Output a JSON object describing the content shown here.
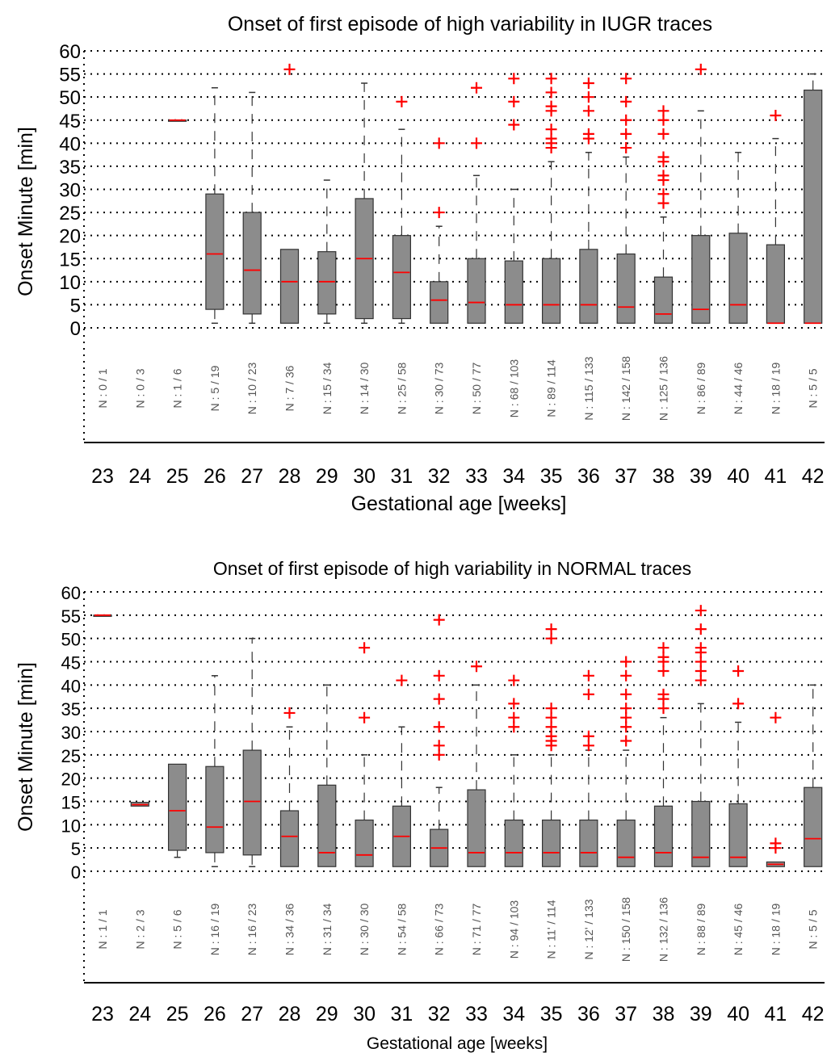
{
  "chart_data": [
    {
      "type": "box",
      "title": "Onset of first episode of high variability in IUGR traces",
      "xlabel": "Gestational age [weeks]",
      "ylabel": "Onset Minute [min]",
      "ylim": [
        0,
        60
      ],
      "yticks": [
        "0",
        "5",
        "10",
        "15",
        "20",
        "25",
        "30",
        "35",
        "40",
        "45",
        "50",
        "55",
        "60"
      ],
      "grid": "dotted",
      "categories": [
        "23",
        "24",
        "25",
        "26",
        "27",
        "28",
        "29",
        "30",
        "31",
        "32",
        "33",
        "34",
        "35",
        "36",
        "37",
        "38",
        "39",
        "40",
        "41",
        "42"
      ],
      "n_labels": [
        "N : 0 / 1",
        "N : 0 / 3",
        "N : 1 / 6",
        "N : 5 / 19",
        "N : 10 / 23",
        "N : 7 / 36",
        "N : 15 / 34",
        "N : 14 / 30",
        "N : 25 / 58",
        "N : 30 / 73",
        "N : 50 / 77",
        "N : 68 / 103",
        "N : 89 / 114",
        "N : 115 / 133",
        "N : 142 / 158",
        "N : 125 / 136",
        "N : 86 / 89",
        "N : 44 / 46",
        "N : 18 / 19",
        "N : 5 / 5"
      ],
      "boxes": [
        null,
        null,
        {
          "q1": 45,
          "median": 45,
          "q3": 45,
          "whisker_low": 45,
          "whisker_high": 45,
          "outliers": []
        },
        {
          "q1": 4,
          "median": 16,
          "q3": 29,
          "whisker_low": 1,
          "whisker_high": 52,
          "outliers": []
        },
        {
          "q1": 3,
          "median": 12.5,
          "q3": 25,
          "whisker_low": 1,
          "whisker_high": 51,
          "outliers": []
        },
        {
          "q1": 1,
          "median": 10,
          "q3": 17,
          "whisker_low": 1,
          "whisker_high": 17,
          "outliers": [
            56
          ]
        },
        {
          "q1": 3,
          "median": 10,
          "q3": 16.5,
          "whisker_low": 1,
          "whisker_high": 32,
          "outliers": []
        },
        {
          "q1": 2,
          "median": 15,
          "q3": 28,
          "whisker_low": 1,
          "whisker_high": 53,
          "outliers": []
        },
        {
          "q1": 2,
          "median": 12,
          "q3": 20,
          "whisker_low": 1,
          "whisker_high": 43,
          "outliers": [
            49
          ]
        },
        {
          "q1": 1,
          "median": 6,
          "q3": 10,
          "whisker_low": 1,
          "whisker_high": 22,
          "outliers": [
            25,
            40
          ]
        },
        {
          "q1": 1,
          "median": 5.5,
          "q3": 15,
          "whisker_low": 1,
          "whisker_high": 33,
          "outliers": [
            40,
            52
          ]
        },
        {
          "q1": 1,
          "median": 5,
          "q3": 14.5,
          "whisker_low": 1,
          "whisker_high": 30,
          "outliers": [
            44,
            49,
            54
          ]
        },
        {
          "q1": 1,
          "median": 5,
          "q3": 15,
          "whisker_low": 1,
          "whisker_high": 36,
          "outliers": [
            39,
            40,
            41,
            43,
            47,
            48,
            51,
            54
          ]
        },
        {
          "q1": 1,
          "median": 5,
          "q3": 17,
          "whisker_low": 1,
          "whisker_high": 38,
          "outliers": [
            41,
            42,
            47,
            50,
            53
          ]
        },
        {
          "q1": 1,
          "median": 4.5,
          "q3": 16,
          "whisker_low": 1,
          "whisker_high": 37,
          "outliers": [
            39,
            42,
            45,
            49,
            54
          ]
        },
        {
          "q1": 1,
          "median": 3,
          "q3": 11,
          "whisker_low": 1,
          "whisker_high": 24,
          "outliers": [
            27,
            29,
            32,
            33,
            36,
            37,
            42,
            45,
            47
          ]
        },
        {
          "q1": 1,
          "median": 4,
          "q3": 20,
          "whisker_low": 1,
          "whisker_high": 47,
          "outliers": [
            56
          ]
        },
        {
          "q1": 1,
          "median": 5,
          "q3": 20.5,
          "whisker_low": 1,
          "whisker_high": 38,
          "outliers": []
        },
        {
          "q1": 1,
          "median": 1,
          "q3": 18,
          "whisker_low": 1,
          "whisker_high": 41,
          "outliers": [
            46
          ]
        },
        {
          "q1": 1,
          "median": 1,
          "q3": 51.5,
          "whisker_low": 1,
          "whisker_high": 55,
          "outliers": []
        }
      ]
    },
    {
      "type": "box",
      "title": "Onset of first episode of high variability in NORMAL traces",
      "xlabel": "Gestational age [weeks]",
      "ylabel": "Onset Minute [min]",
      "ylim": [
        0,
        60
      ],
      "yticks": [
        "0",
        "5",
        "10",
        "15",
        "20",
        "25",
        "30",
        "35",
        "40",
        "45",
        "50",
        "55",
        "60"
      ],
      "grid": "dotted",
      "categories": [
        "23",
        "24",
        "25",
        "26",
        "27",
        "28",
        "29",
        "30",
        "31",
        "32",
        "33",
        "34",
        "35",
        "36",
        "37",
        "38",
        "39",
        "40",
        "41",
        "42"
      ],
      "n_labels": [
        "N : 1 / 1",
        "N : 2 / 3",
        "N : 5 / 6",
        "N : 16 / 19",
        "N : 16 / 23",
        "N : 34 / 36",
        "N : 31 / 34",
        "N : 30 / 30",
        "N : 54 / 58",
        "N : 66 / 73",
        "N : 71 / 77",
        "N : 94 / 103",
        "N : 11' / 114",
        "N : 12' / 133",
        "N : 150 / 158",
        "N : 132 / 136",
        "N : 88 / 89",
        "N : 45 / 46",
        "N : 18 / 19",
        "N : 5 / 5"
      ],
      "boxes": [
        {
          "q1": 55,
          "median": 55,
          "q3": 55,
          "whisker_low": 55,
          "whisker_high": 55,
          "outliers": []
        },
        {
          "q1": 14,
          "median": 14.3,
          "q3": 14.8,
          "whisker_low": 14,
          "whisker_high": 14.8,
          "outliers": []
        },
        {
          "q1": 4.5,
          "median": 13,
          "q3": 23,
          "whisker_low": 3,
          "whisker_high": 23,
          "outliers": []
        },
        {
          "q1": 4,
          "median": 9.5,
          "q3": 22.5,
          "whisker_low": 1,
          "whisker_high": 42,
          "outliers": []
        },
        {
          "q1": 3.5,
          "median": 15,
          "q3": 26,
          "whisker_low": 1,
          "whisker_high": 50,
          "outliers": []
        },
        {
          "q1": 1,
          "median": 7.5,
          "q3": 13,
          "whisker_low": 1,
          "whisker_high": 31,
          "outliers": [
            34
          ]
        },
        {
          "q1": 1,
          "median": 4,
          "q3": 18.5,
          "whisker_low": 1,
          "whisker_high": 40,
          "outliers": []
        },
        {
          "q1": 1,
          "median": 3.5,
          "q3": 11,
          "whisker_low": 1,
          "whisker_high": 25,
          "outliers": [
            33,
            48
          ]
        },
        {
          "q1": 1,
          "median": 7.5,
          "q3": 14,
          "whisker_low": 1,
          "whisker_high": 31,
          "outliers": [
            41
          ]
        },
        {
          "q1": 1,
          "median": 5,
          "q3": 9,
          "whisker_low": 1,
          "whisker_high": 18,
          "outliers": [
            25,
            27,
            31,
            37,
            42,
            54
          ]
        },
        {
          "q1": 1,
          "median": 4,
          "q3": 17.5,
          "whisker_low": 1,
          "whisker_high": 40,
          "outliers": [
            44
          ]
        },
        {
          "q1": 1,
          "median": 4,
          "q3": 11,
          "whisker_low": 1,
          "whisker_high": 25,
          "outliers": [
            31,
            33,
            36,
            41
          ]
        },
        {
          "q1": 1,
          "median": 4,
          "q3": 11,
          "whisker_low": 1,
          "whisker_high": 25,
          "outliers": [
            27,
            28,
            29,
            31,
            33,
            35,
            50,
            52
          ]
        },
        {
          "q1": 1,
          "median": 4,
          "q3": 11,
          "whisker_low": 1,
          "whisker_high": 26,
          "outliers": [
            27,
            29,
            38,
            42
          ]
        },
        {
          "q1": 1,
          "median": 3,
          "q3": 11,
          "whisker_low": 1,
          "whisker_high": 26,
          "outliers": [
            28,
            31,
            33,
            35,
            38,
            42,
            45
          ]
        },
        {
          "q1": 1,
          "median": 4,
          "q3": 14,
          "whisker_low": 1,
          "whisker_high": 33,
          "outliers": [
            35,
            37,
            38,
            43,
            45,
            46,
            48
          ]
        },
        {
          "q1": 1,
          "median": 3,
          "q3": 15,
          "whisker_low": 1,
          "whisker_high": 36,
          "outliers": [
            41,
            43,
            45,
            47,
            48,
            52,
            56
          ]
        },
        {
          "q1": 1,
          "median": 3,
          "q3": 14.5,
          "whisker_low": 1,
          "whisker_high": 32,
          "outliers": [
            36,
            43
          ]
        },
        {
          "q1": 1,
          "median": 1.5,
          "q3": 2,
          "whisker_low": 1,
          "whisker_high": 2,
          "outliers": [
            5,
            6,
            33
          ]
        },
        {
          "q1": 1,
          "median": 7,
          "q3": 18,
          "whisker_low": 1,
          "whisker_high": 40,
          "outliers": []
        }
      ]
    }
  ],
  "colors": {
    "box_fill": "#8c8c8c",
    "box_stroke": "#333333",
    "median": "#ff0000",
    "outlier": "#ff0000",
    "grid": "#000000"
  }
}
